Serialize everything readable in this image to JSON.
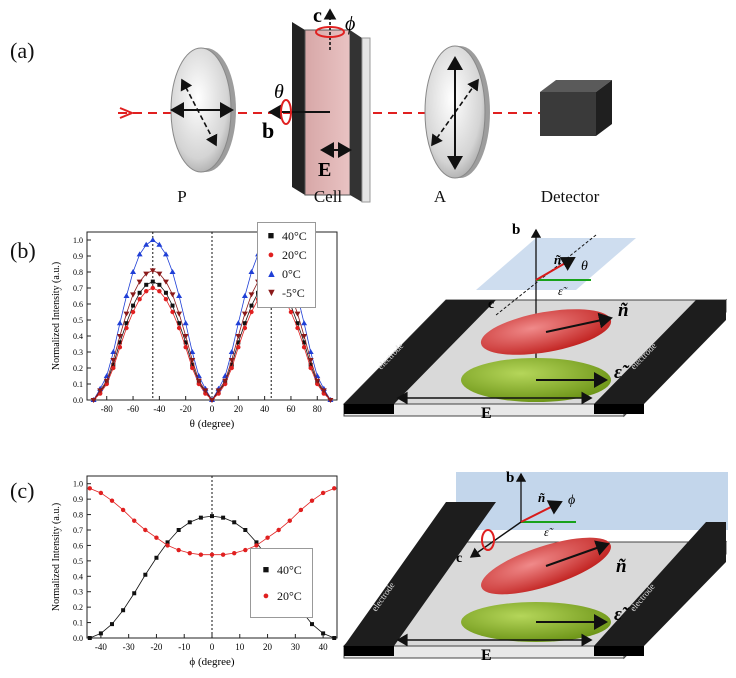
{
  "panel_labels": {
    "a": "(a)",
    "b": "(b)",
    "c": "(c)"
  },
  "setup": {
    "labels": {
      "polarizer": "P",
      "cell": "Cell",
      "analyzer": "A",
      "detector": "Detector"
    },
    "symbols": {
      "c_axis": "c",
      "phi": "ϕ",
      "theta": "θ",
      "b_axis": "b",
      "field": "E"
    }
  },
  "chart_b": {
    "ylabel": "Normalized Intensity (a.u.)",
    "xlabel": "θ (degree)",
    "xticks": [
      -80,
      -60,
      -40,
      -20,
      0,
      20,
      40,
      60,
      80
    ],
    "yticks": [
      0.0,
      0.1,
      0.2,
      0.3,
      0.4,
      0.5,
      0.6,
      0.7,
      0.8,
      0.9,
      1.0
    ],
    "legend": [
      "40°C",
      "20°C",
      "0°C",
      "-5°C"
    ]
  },
  "chart_c": {
    "ylabel": "Normalized Intensity (a.u.)",
    "xlabel": "ϕ (degree)",
    "xticks": [
      -40,
      -30,
      -20,
      -10,
      0,
      10,
      20,
      30,
      40
    ],
    "yticks": [
      0.0,
      0.1,
      0.2,
      0.3,
      0.4,
      0.5,
      0.6,
      0.7,
      0.8,
      0.9,
      1.0
    ],
    "legend": [
      "40°C",
      "20°C"
    ]
  },
  "schematic": {
    "b_axis": "b",
    "c_axis": "c",
    "n_tilde": "ñ",
    "eps_tilde": "ε̃",
    "theta": "θ",
    "phi": "ϕ",
    "field": "E",
    "electrode_text": "electrode"
  },
  "chart_data": [
    {
      "type": "scatter",
      "title": "",
      "xlabel": "θ (degree)",
      "ylabel": "Normalized Intensity (a.u.)",
      "xlim": [
        -95,
        95
      ],
      "ylim": [
        0,
        1.05
      ],
      "x": [
        -90,
        -85,
        -80,
        -75,
        -70,
        -65,
        -60,
        -55,
        -50,
        -45,
        -40,
        -35,
        -30,
        -25,
        -20,
        -15,
        -10,
        -5,
        0,
        5,
        10,
        15,
        20,
        25,
        30,
        35,
        40,
        45,
        50,
        55,
        60,
        65,
        70,
        75,
        80,
        85,
        90
      ],
      "series": [
        {
          "name": "40°C",
          "color": "#111111",
          "marker": "square",
          "values": [
            0.0,
            0.05,
            0.11,
            0.22,
            0.36,
            0.48,
            0.59,
            0.67,
            0.72,
            0.74,
            0.72,
            0.67,
            0.59,
            0.48,
            0.36,
            0.22,
            0.11,
            0.05,
            0.0,
            0.05,
            0.11,
            0.22,
            0.36,
            0.48,
            0.59,
            0.67,
            0.72,
            0.74,
            0.72,
            0.67,
            0.59,
            0.48,
            0.36,
            0.22,
            0.11,
            0.05,
            0.0
          ]
        },
        {
          "name": "20°C",
          "color": "#e02020",
          "marker": "circle",
          "values": [
            0.0,
            0.04,
            0.1,
            0.2,
            0.33,
            0.45,
            0.55,
            0.63,
            0.68,
            0.7,
            0.68,
            0.63,
            0.55,
            0.45,
            0.33,
            0.2,
            0.1,
            0.04,
            0.0,
            0.04,
            0.1,
            0.2,
            0.33,
            0.45,
            0.55,
            0.63,
            0.68,
            0.7,
            0.68,
            0.63,
            0.55,
            0.45,
            0.33,
            0.2,
            0.1,
            0.04,
            0.0
          ]
        },
        {
          "name": "0°C",
          "color": "#1f3fd6",
          "marker": "triangle-up",
          "values": [
            0.0,
            0.07,
            0.15,
            0.3,
            0.48,
            0.65,
            0.8,
            0.91,
            0.97,
            1.0,
            0.97,
            0.91,
            0.8,
            0.65,
            0.48,
            0.3,
            0.15,
            0.07,
            0.0,
            0.07,
            0.15,
            0.3,
            0.48,
            0.65,
            0.8,
            0.91,
            0.97,
            1.0,
            0.97,
            0.91,
            0.8,
            0.65,
            0.48,
            0.3,
            0.15,
            0.07,
            0.0
          ]
        },
        {
          "name": "-5°C",
          "color": "#8b1a1a",
          "marker": "triangle-down",
          "values": [
            0.0,
            0.06,
            0.12,
            0.25,
            0.4,
            0.54,
            0.66,
            0.74,
            0.79,
            0.81,
            0.79,
            0.74,
            0.66,
            0.54,
            0.4,
            0.25,
            0.12,
            0.06,
            0.0,
            0.06,
            0.12,
            0.25,
            0.4,
            0.54,
            0.66,
            0.74,
            0.79,
            0.81,
            0.79,
            0.74,
            0.66,
            0.54,
            0.4,
            0.25,
            0.12,
            0.06,
            0.0
          ]
        }
      ],
      "vlines": [
        -45,
        0,
        45
      ]
    },
    {
      "type": "scatter",
      "title": "",
      "xlabel": "ϕ (degree)",
      "ylabel": "Normalized Intensity (a.u.)",
      "xlim": [
        -45,
        45
      ],
      "ylim": [
        0,
        1.05
      ],
      "x": [
        -44,
        -40,
        -36,
        -32,
        -28,
        -24,
        -20,
        -16,
        -12,
        -8,
        -4,
        0,
        4,
        8,
        12,
        16,
        20,
        24,
        28,
        32,
        36,
        40,
        44
      ],
      "series": [
        {
          "name": "40°C",
          "color": "#111111",
          "marker": "square",
          "values": [
            0.0,
            0.03,
            0.09,
            0.18,
            0.29,
            0.41,
            0.52,
            0.62,
            0.7,
            0.75,
            0.78,
            0.79,
            0.78,
            0.75,
            0.7,
            0.62,
            0.52,
            0.41,
            0.29,
            0.18,
            0.09,
            0.03,
            0.0
          ]
        },
        {
          "name": "20°C",
          "color": "#e02020",
          "marker": "circle",
          "values": [
            0.97,
            0.94,
            0.89,
            0.83,
            0.76,
            0.7,
            0.65,
            0.6,
            0.57,
            0.55,
            0.54,
            0.54,
            0.54,
            0.55,
            0.57,
            0.6,
            0.65,
            0.7,
            0.76,
            0.83,
            0.89,
            0.94,
            0.97
          ]
        }
      ],
      "vlines": [
        0
      ]
    }
  ]
}
